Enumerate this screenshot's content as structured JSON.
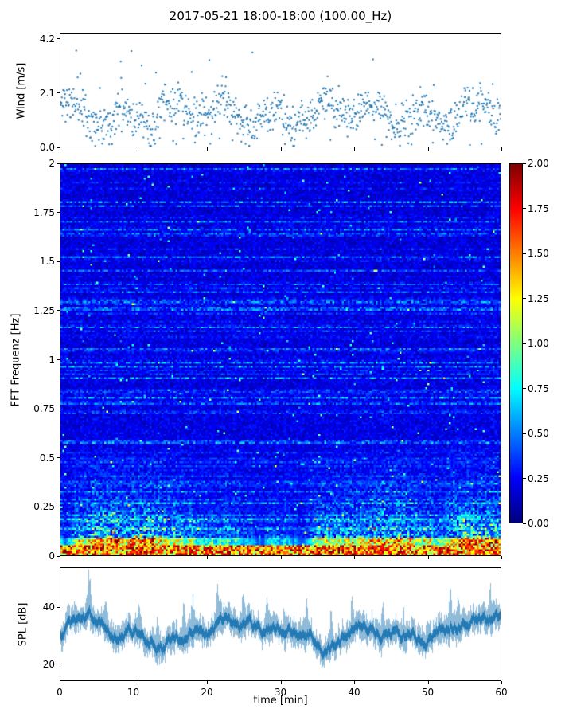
{
  "title": "2017-05-21 18:00-18:00 (100.00_Hz)",
  "colors": {
    "scatter_point": "#1f77b4",
    "spl_line": "#1f77b4",
    "axis": "#000000",
    "background": "#ffffff",
    "colormap": "jet"
  },
  "chart_data": [
    {
      "type": "scatter",
      "name": "wind-speed",
      "ylabel": "Wind [m/s]",
      "xlim": [
        0,
        60
      ],
      "ylim": [
        0,
        4.4
      ],
      "yticks": [
        {
          "v": 0.0,
          "label": "0.0"
        },
        {
          "v": 2.1,
          "label": "2.1"
        },
        {
          "v": 4.2,
          "label": "4.2"
        }
      ],
      "point_color": "#1f77b4",
      "n_points": 950,
      "seed": 11,
      "mean": 1.3,
      "spread": 0.5,
      "max_observed": 4.2,
      "grid": false
    },
    {
      "type": "heatmap",
      "name": "fft-spectrogram",
      "ylabel": "FFT Frequenz [Hz]",
      "xlim": [
        0,
        60
      ],
      "ylim": [
        0,
        2
      ],
      "yticks": [
        {
          "v": 0,
          "label": "0"
        },
        {
          "v": 0.25,
          "label": "0.25"
        },
        {
          "v": 0.5,
          "label": "0.5"
        },
        {
          "v": 0.75,
          "label": "0.75"
        },
        {
          "v": 1,
          "label": "1"
        },
        {
          "v": 1.25,
          "label": "1.25"
        },
        {
          "v": 1.5,
          "label": "1.5"
        },
        {
          "v": 1.75,
          "label": "1.75"
        },
        {
          "v": 2,
          "label": "2"
        }
      ],
      "colormap": "jet",
      "vmin": 0,
      "vmax": 2,
      "colorbar_ticks": [
        {
          "v": 0.0,
          "label": "0.00"
        },
        {
          "v": 0.25,
          "label": "0.25"
        },
        {
          "v": 0.5,
          "label": "0.50"
        },
        {
          "v": 0.75,
          "label": "0.75"
        },
        {
          "v": 1.0,
          "label": "1.00"
        },
        {
          "v": 1.25,
          "label": "1.25"
        },
        {
          "v": 1.5,
          "label": "1.50"
        },
        {
          "v": 1.75,
          "label": "1.75"
        },
        {
          "v": 2.0,
          "label": "2.00"
        }
      ],
      "seed": 7,
      "cols": 222,
      "rows": 200,
      "base_level": 0.18,
      "low_freq_band_hz": 0.25,
      "low_freq_peak": 2.0,
      "grid": false
    },
    {
      "type": "line",
      "name": "sound-pressure-level",
      "ylabel": "SPL [dB]",
      "xlabel": "time [min]",
      "xlim": [
        0,
        60
      ],
      "ylim": [
        14,
        54
      ],
      "yticks": [
        {
          "v": 20,
          "label": "20"
        },
        {
          "v": 40,
          "label": "40"
        }
      ],
      "xticks": [
        {
          "v": 0,
          "label": "0"
        },
        {
          "v": 10,
          "label": "10"
        },
        {
          "v": 20,
          "label": "20"
        },
        {
          "v": 30,
          "label": "30"
        },
        {
          "v": 40,
          "label": "40"
        },
        {
          "v": 50,
          "label": "50"
        },
        {
          "v": 60,
          "label": "60"
        }
      ],
      "line_color": "#1f77b4",
      "seed": 23,
      "baseline_db": 31,
      "spikes": [
        {
          "t": 3.9,
          "a": 13
        },
        {
          "t": 6.1,
          "a": 7
        },
        {
          "t": 10.7,
          "a": 9
        },
        {
          "t": 13.2,
          "a": 8
        },
        {
          "t": 16.8,
          "a": 12
        },
        {
          "t": 18.0,
          "a": 8
        },
        {
          "t": 21.4,
          "a": 9
        },
        {
          "t": 24.9,
          "a": 7
        },
        {
          "t": 28.2,
          "a": 9
        },
        {
          "t": 30.6,
          "a": 8
        },
        {
          "t": 33.5,
          "a": 10
        },
        {
          "t": 36.9,
          "a": 9
        },
        {
          "t": 39.8,
          "a": 7
        },
        {
          "t": 43.9,
          "a": 8
        },
        {
          "t": 46.8,
          "a": 7
        },
        {
          "t": 50.1,
          "a": 6
        },
        {
          "t": 53.2,
          "a": 14
        },
        {
          "t": 54.3,
          "a": 11
        },
        {
          "t": 58.7,
          "a": 9
        }
      ],
      "grid": false
    }
  ]
}
